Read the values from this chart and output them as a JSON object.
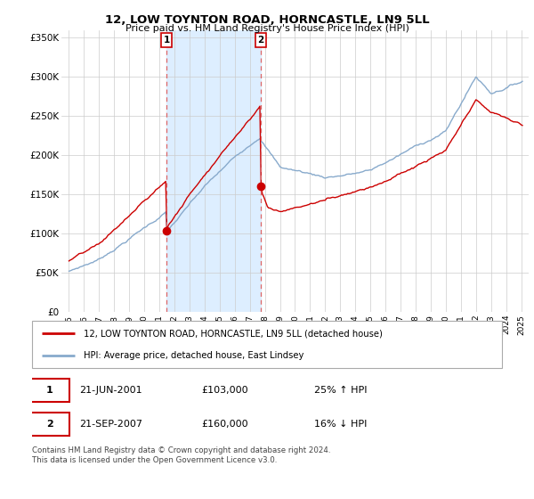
{
  "title": "12, LOW TOYNTON ROAD, HORNCASTLE, LN9 5LL",
  "subtitle": "Price paid vs. HM Land Registry's House Price Index (HPI)",
  "legend_line1": "12, LOW TOYNTON ROAD, HORNCASTLE, LN9 5LL (detached house)",
  "legend_line2": "HPI: Average price, detached house, East Lindsey",
  "sale1_date": 2001.47,
  "sale1_price": 103000,
  "sale1_label": "21-JUN-2001",
  "sale1_pct": "25% ↑ HPI",
  "sale2_date": 2007.72,
  "sale2_price": 160000,
  "sale2_label": "21-SEP-2007",
  "sale2_pct": "16% ↓ HPI",
  "ylim_max": 360000,
  "xlim_min": 1994.5,
  "xlim_max": 2025.5,
  "red_color": "#cc0000",
  "blue_color": "#88aacc",
  "dashed_color": "#dd6666",
  "span_color": "#ddeeff",
  "footer": "Contains HM Land Registry data © Crown copyright and database right 2024.\nThis data is licensed under the Open Government Licence v3.0."
}
